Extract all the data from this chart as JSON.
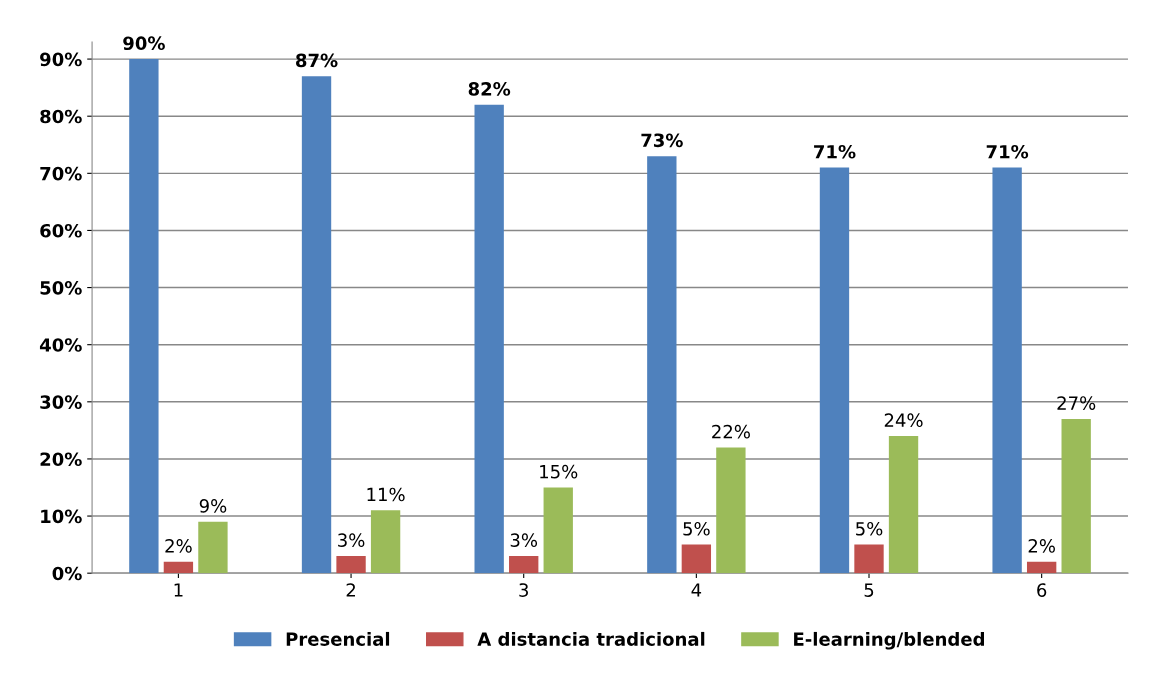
{
  "chart_data": {
    "type": "bar",
    "categories": [
      "1",
      "2",
      "3",
      "4",
      "5",
      "6"
    ],
    "series": [
      {
        "name": "Presencial",
        "color": "#4f81bd",
        "values": [
          90,
          87,
          82,
          73,
          71,
          71
        ],
        "value_labels": [
          "90%",
          "87%",
          "82%",
          "73%",
          "71%",
          "71%"
        ]
      },
      {
        "name": "A distancia tradicional",
        "color": "#c0504d",
        "values": [
          2,
          3,
          3,
          5,
          5,
          2
        ],
        "value_labels": [
          "2%",
          "3%",
          "3%",
          "5%",
          "5%",
          "2%"
        ]
      },
      {
        "name": "E-learning/blended",
        "color": "#9bbb59",
        "values": [
          9,
          11,
          15,
          22,
          24,
          27
        ],
        "value_labels": [
          "9%",
          "11%",
          "15%",
          "22%",
          "24%",
          "27%"
        ]
      }
    ],
    "ylim": [
      0,
      93
    ],
    "yticks": [
      {
        "value": 0,
        "label": "0%"
      },
      {
        "value": 10,
        "label": "10%"
      },
      {
        "value": 20,
        "label": "20%"
      },
      {
        "value": 30,
        "label": "30%"
      },
      {
        "value": 40,
        "label": "40%"
      },
      {
        "value": 50,
        "label": "50%"
      },
      {
        "value": 60,
        "label": "60%"
      },
      {
        "value": 70,
        "label": "70%"
      },
      {
        "value": 80,
        "label": "80%"
      },
      {
        "value": 90,
        "label": "90%"
      }
    ],
    "grid": "y",
    "legend": "bottom"
  }
}
